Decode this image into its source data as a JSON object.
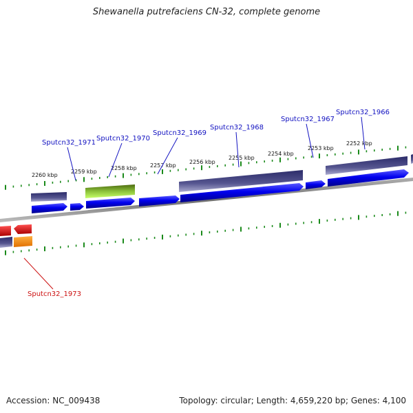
{
  "title": "Shewanella putrefaciens CN-32, complete genome",
  "footer": {
    "accession": "Accession: NC_009438",
    "summary": "Topology: circular; Length: 4,659,220 bp; Genes: 4,100"
  },
  "colors": {
    "cds_forward": "#0000ee",
    "cds_reverse": "#e01010",
    "gene_bar": "#4a4a8a",
    "highlight_gene_bar": "#6a8a20",
    "rna_bar": "#f08010",
    "backbone": "#808080",
    "tick": "#1a8a1a",
    "label_blue": "#1010c0",
    "label_red": "#cc1010"
  },
  "scale_labels": [
    "2260 kbp",
    "2259 kbp",
    "2258 kbp",
    "2257 kbp",
    "2256 kbp",
    "2255 kbp",
    "2254 kbp",
    "2253 kbp",
    "2252 kbp"
  ],
  "gene_labels": [
    {
      "name": "Sputcn32_1971",
      "color": "label_blue"
    },
    {
      "name": "Sputcn32_1970",
      "color": "label_blue"
    },
    {
      "name": "Sputcn32_1969",
      "color": "label_blue"
    },
    {
      "name": "Sputcn32_1968",
      "color": "label_blue"
    },
    {
      "name": "Sputcn32_1967",
      "color": "label_blue"
    },
    {
      "name": "Sputcn32_1966",
      "color": "label_blue"
    },
    {
      "name": "Sputcn32_1973",
      "color": "label_red"
    }
  ]
}
